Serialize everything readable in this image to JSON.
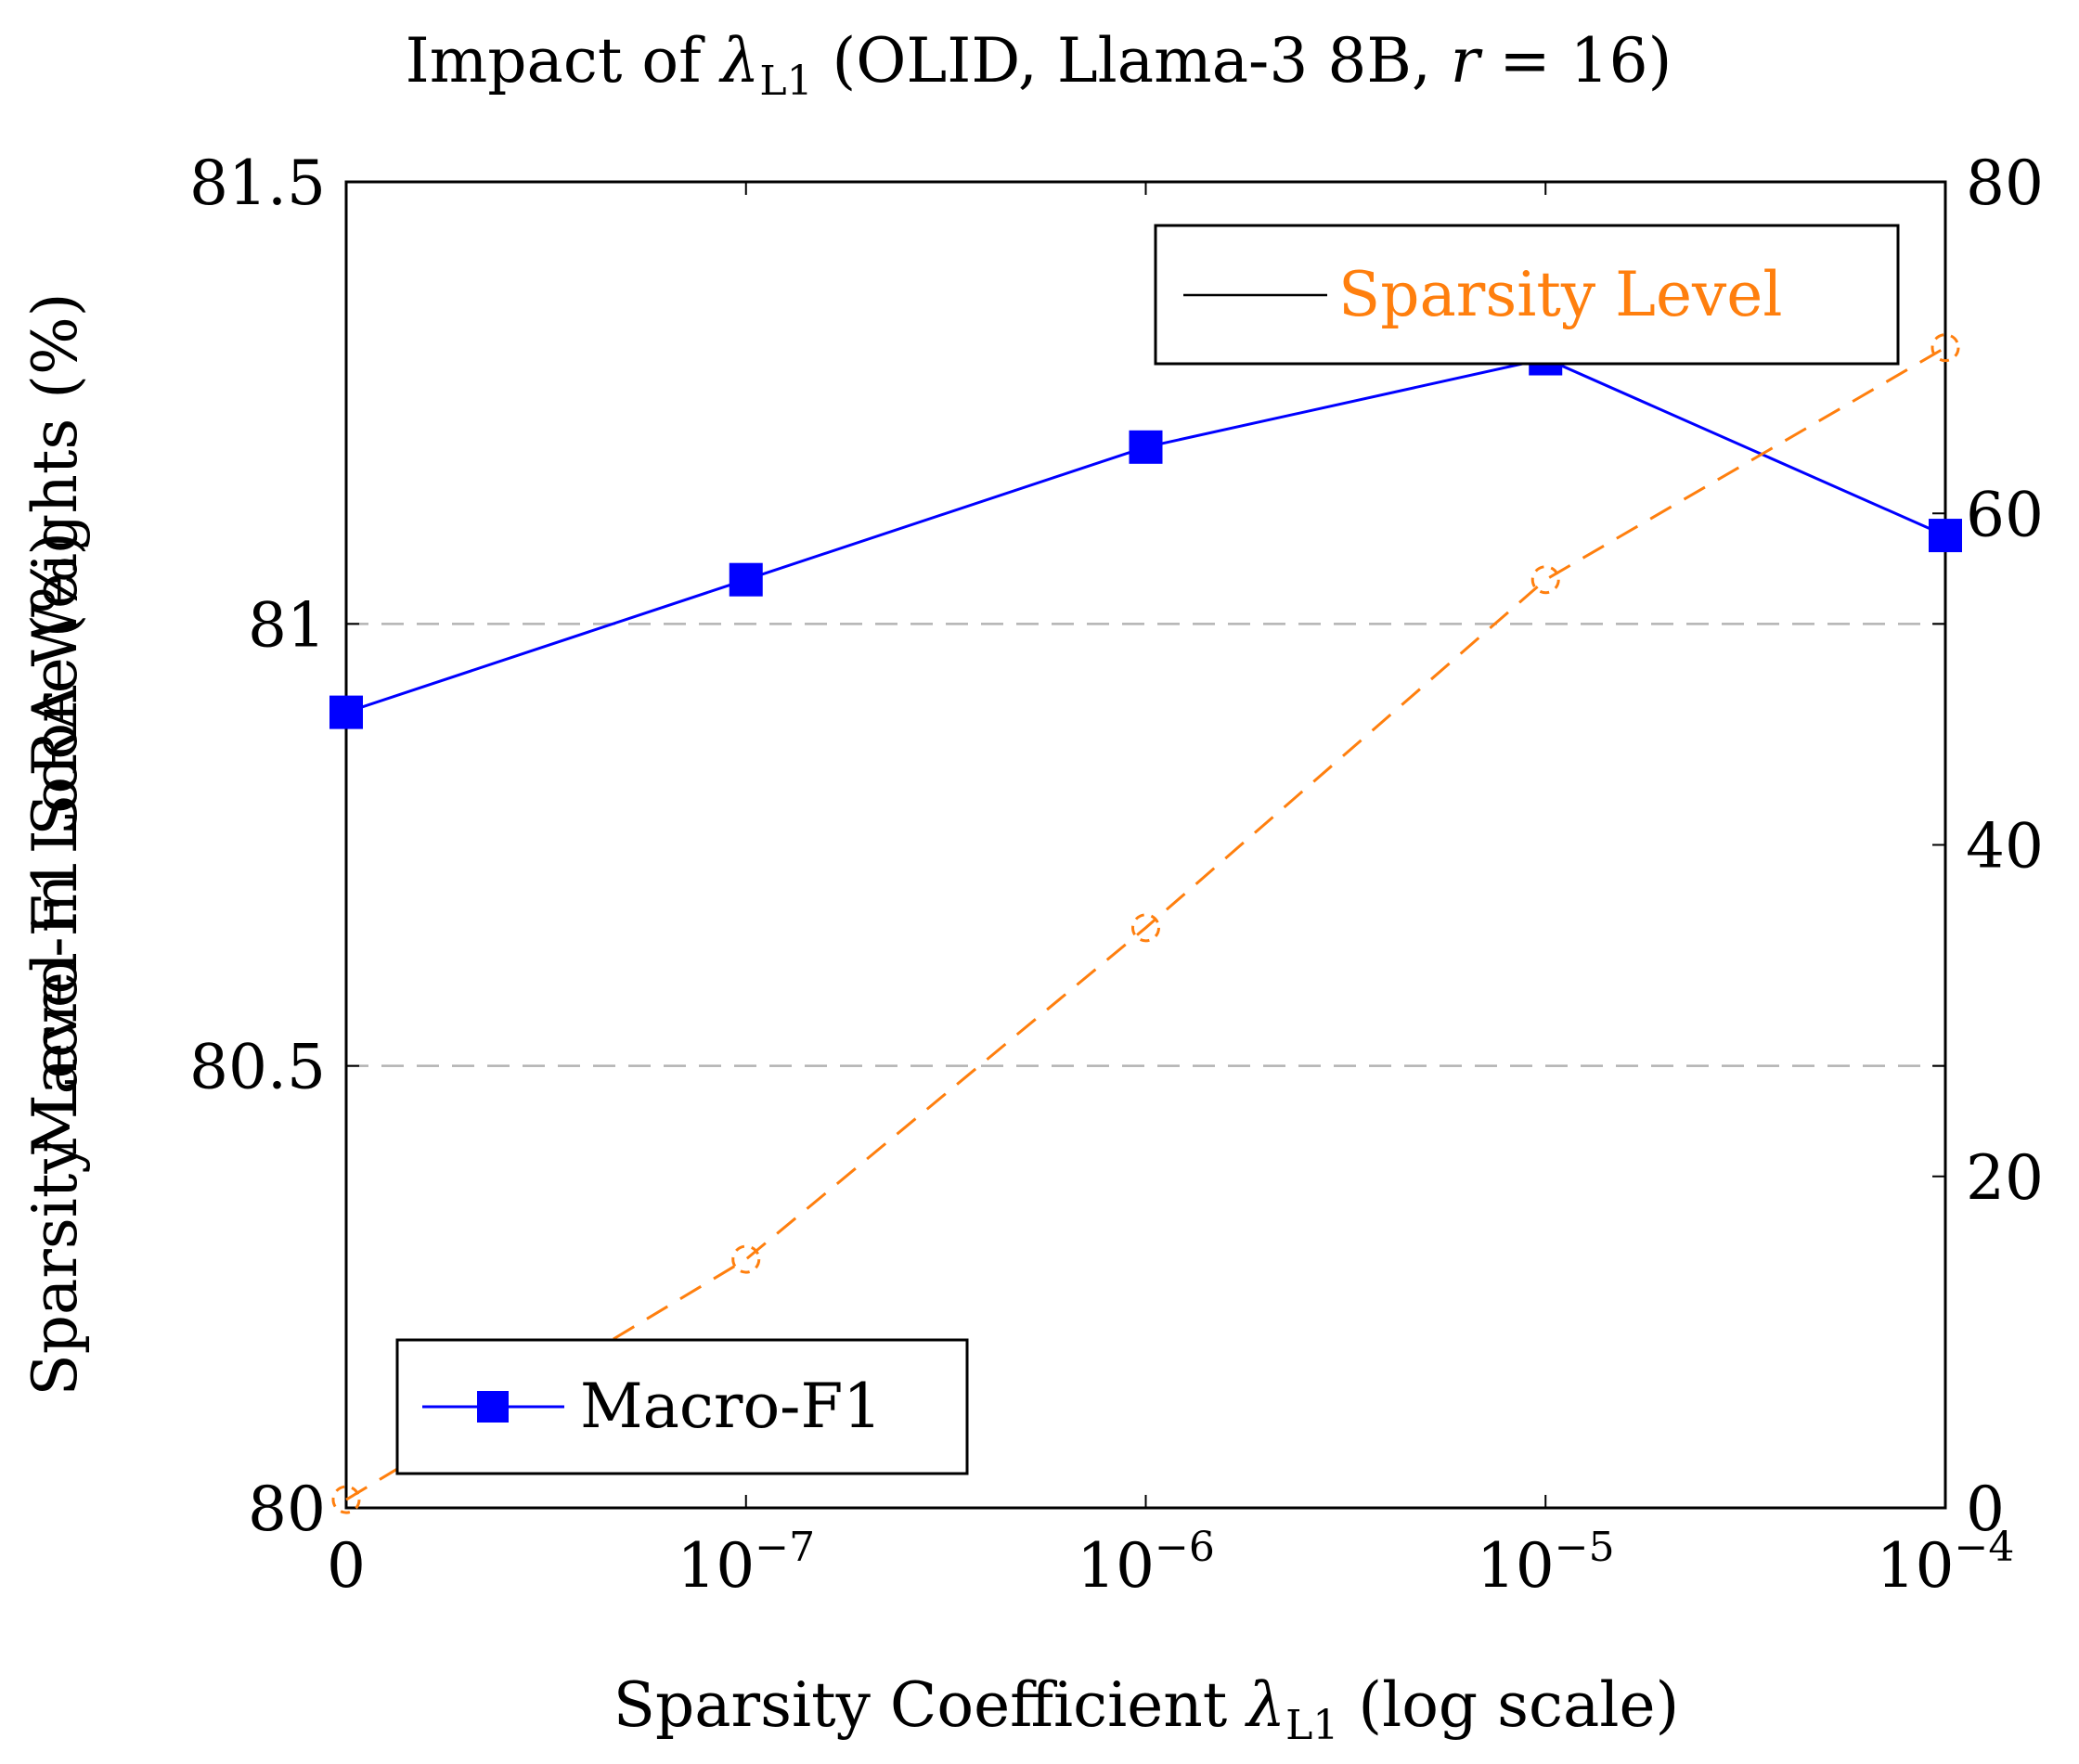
{
  "chart_data": {
    "type": "line",
    "title": {
      "prefix": "Impact of ",
      "lambda": "λ",
      "sub": "L1",
      "middle": " (OLID, Llama-3 8B, ",
      "r": "r",
      "suffix": " = 16)"
    },
    "xlabel": {
      "prefix": "Sparsity Coefficient ",
      "lambda": "λ",
      "sub": "L1",
      "suffix": " (log scale)"
    },
    "ylabel_left_a": "Macro-F1 Score (%)",
    "ylabel_left_b": "Sparsity Level in LoRA Weights (%)",
    "x_scale": "log",
    "x_ticks": [
      {
        "value": 0,
        "base": "0",
        "exp": ""
      },
      {
        "value": 1e-07,
        "base": "10",
        "exp": "−7"
      },
      {
        "value": 1e-06,
        "base": "10",
        "exp": "−6"
      },
      {
        "value": 1e-05,
        "base": "10",
        "exp": "−5"
      },
      {
        "value": 0.0001,
        "base": "10",
        "exp": "−4"
      }
    ],
    "y_left": {
      "range": [
        80,
        81.5
      ],
      "ticks": [
        {
          "value": 80,
          "label": "80"
        },
        {
          "value": 80.5,
          "label": "80.5"
        },
        {
          "value": 81,
          "label": "81"
        },
        {
          "value": 81.5,
          "label": "81.5"
        }
      ]
    },
    "y_right": {
      "range": [
        0,
        80
      ],
      "ticks": [
        {
          "value": 0,
          "label": "0"
        },
        {
          "value": 20,
          "label": "20"
        },
        {
          "value": 40,
          "label": "40"
        },
        {
          "value": 60,
          "label": "60"
        },
        {
          "value": 80,
          "label": "80"
        }
      ]
    },
    "grid": "horizontal-dashed",
    "series": [
      {
        "name": "Macro-F1",
        "axis": "left",
        "color": "#0000ff",
        "marker": "square",
        "x": [
          0,
          1e-07,
          1e-06,
          1e-05,
          0.0001
        ],
        "values": [
          80.9,
          81.05,
          81.2,
          81.3,
          81.1
        ],
        "legend_position": "bottom-left"
      },
      {
        "name": "Sparsity Level",
        "axis": "right",
        "color": "#ff7f0e",
        "marker": "circle",
        "x": [
          0,
          1e-07,
          1e-06,
          1e-05,
          0.0001
        ],
        "values": [
          0.5,
          15,
          35,
          56,
          70
        ],
        "legend_position": "top-right"
      }
    ]
  }
}
